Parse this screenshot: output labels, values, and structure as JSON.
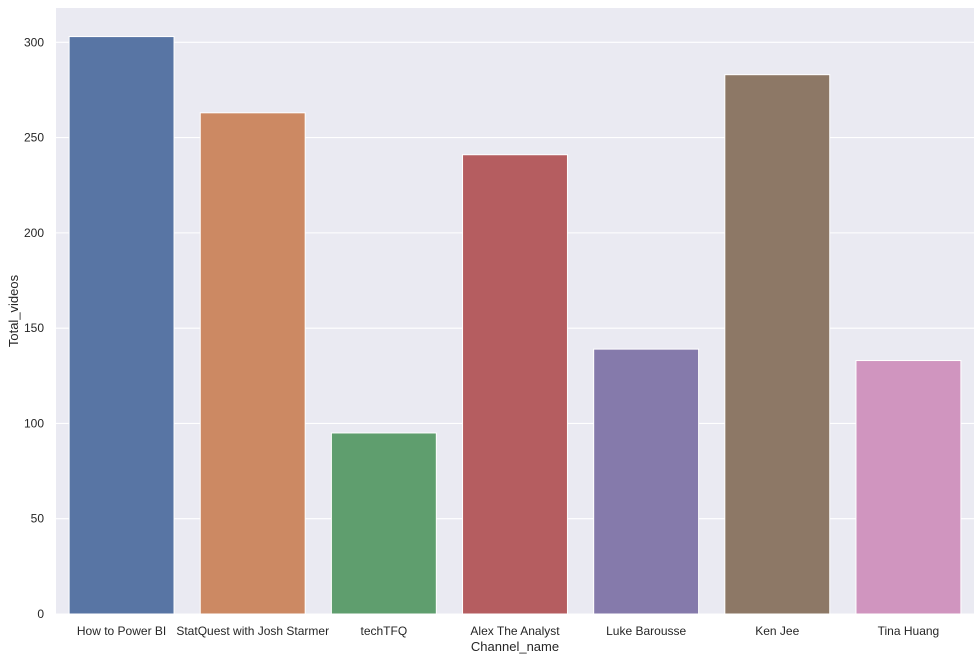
{
  "chart_data": {
    "type": "bar",
    "title": "",
    "xlabel": "Channel_name",
    "ylabel": "Total_videos",
    "categories": [
      "How to Power BI",
      "StatQuest with Josh Starmer",
      "techTFQ",
      "Alex The Analyst",
      "Luke Barousse",
      "Ken Jee",
      "Tina Huang"
    ],
    "values": [
      303,
      263,
      95,
      241,
      139,
      283,
      133
    ],
    "colors": [
      "#5875a4",
      "#cc8963",
      "#5f9e6e",
      "#b55d60",
      "#857aab",
      "#8d7866",
      "#d095bf"
    ],
    "ylim": [
      0,
      318
    ],
    "yticks": [
      0,
      50,
      100,
      150,
      200,
      250,
      300
    ],
    "grid": true,
    "legend": "none",
    "style": {
      "background_color": "#eaeaf2",
      "grid_color": "#ffffff"
    }
  }
}
